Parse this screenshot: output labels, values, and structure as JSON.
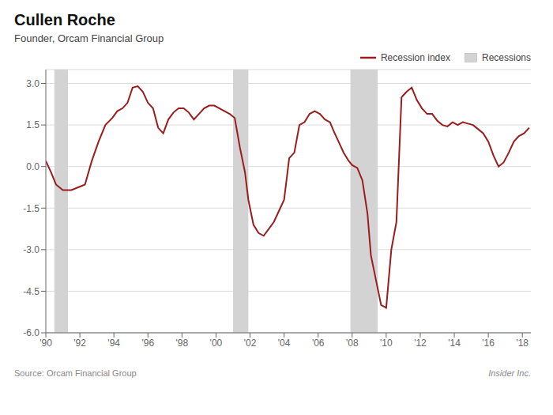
{
  "chart_data": {
    "type": "line",
    "title": "Cullen Roche",
    "subtitle": "Founder, Orcam Financial Group",
    "annotations": [
      "Source: Orcam Financial Group",
      "Insider Inc."
    ],
    "legend": "upper right",
    "grid": "y",
    "xlim": [
      1990.0,
      2018.5
    ],
    "xticks": [
      {
        "value": 1990,
        "label": "'90"
      },
      {
        "value": 1992,
        "label": "'92"
      },
      {
        "value": 1994,
        "label": "'94"
      },
      {
        "value": 1996,
        "label": "'96"
      },
      {
        "value": 1998,
        "label": "'98"
      },
      {
        "value": 2000,
        "label": "'00"
      },
      {
        "value": 2002,
        "label": "'02"
      },
      {
        "value": 2004,
        "label": "'04"
      },
      {
        "value": 2006,
        "label": "'06"
      },
      {
        "value": 2008,
        "label": "'08"
      },
      {
        "value": 2010,
        "label": "'10"
      },
      {
        "value": 2012,
        "label": "'12"
      },
      {
        "value": 2014,
        "label": "'14"
      },
      {
        "value": 2016,
        "label": "'16"
      },
      {
        "value": 2018,
        "label": "'18"
      }
    ],
    "ylim": [
      -6.0,
      3.5
    ],
    "yticks": [
      {
        "value": -6.0,
        "label": "-6.0"
      },
      -4.5,
      {
        "value": -3.0,
        "label": "-3.0"
      },
      -1.5,
      {
        "value": 0.0,
        "label": "0.0"
      },
      1.5,
      {
        "value": 3.0,
        "label": "3.0"
      }
    ],
    "recession_bands": {
      "name": "Recessions",
      "color": "#d3d3d3",
      "ranges": [
        [
          1990.5,
          1991.3
        ],
        [
          2001.0,
          2001.9
        ],
        [
          2007.9,
          2009.5
        ]
      ]
    },
    "x": [
      1990.0,
      1990.3,
      1990.6,
      1991.0,
      1991.5,
      1991.9,
      1992.3,
      1992.7,
      1993.1,
      1993.5,
      1993.9,
      1994.2,
      1994.5,
      1994.8,
      1995.1,
      1995.4,
      1995.7,
      1996.0,
      1996.3,
      1996.6,
      1996.9,
      1997.2,
      1997.5,
      1997.8,
      1998.1,
      1998.4,
      1998.7,
      1999.0,
      1999.3,
      1999.6,
      1999.9,
      2000.2,
      2000.5,
      2000.8,
      2001.1,
      2001.4,
      2001.7,
      2001.9,
      2002.2,
      2002.5,
      2002.8,
      2003.1,
      2003.4,
      2003.7,
      2004.0,
      2004.3,
      2004.6,
      2004.9,
      2005.2,
      2005.5,
      2005.8,
      2006.1,
      2006.4,
      2006.7,
      2006.9,
      2007.2,
      2007.5,
      2007.8,
      2008.0,
      2008.3,
      2008.6,
      2008.9,
      2009.1,
      2009.4,
      2009.7,
      2010.0,
      2010.3,
      2010.6,
      2010.9,
      2011.2,
      2011.5,
      2011.8,
      2012.1,
      2012.4,
      2012.7,
      2013.0,
      2013.3,
      2013.6,
      2013.9,
      2014.2,
      2014.5,
      2014.8,
      2015.1,
      2015.4,
      2015.7,
      2016.0,
      2016.3,
      2016.6,
      2016.9,
      2017.2,
      2017.5,
      2017.8,
      2018.1,
      2018.4
    ],
    "series": [
      {
        "name": "Recession index",
        "color": "#9b1c1c",
        "values": [
          0.2,
          -0.2,
          -0.65,
          -0.85,
          -0.85,
          -0.75,
          -0.65,
          0.2,
          0.9,
          1.5,
          1.75,
          2.0,
          2.1,
          2.3,
          2.85,
          2.9,
          2.7,
          2.3,
          2.1,
          1.4,
          1.2,
          1.7,
          1.95,
          2.1,
          2.1,
          1.95,
          1.7,
          1.9,
          2.1,
          2.2,
          2.2,
          2.1,
          2.0,
          1.9,
          1.75,
          0.7,
          -0.2,
          -1.2,
          -2.1,
          -2.4,
          -2.5,
          -2.25,
          -2.0,
          -1.6,
          -1.2,
          0.3,
          0.5,
          1.5,
          1.6,
          1.9,
          2.0,
          1.9,
          1.7,
          1.6,
          1.3,
          0.9,
          0.5,
          0.2,
          0.05,
          -0.05,
          -0.5,
          -1.7,
          -3.2,
          -4.1,
          -5.0,
          -5.1,
          -3.0,
          -2.0,
          2.5,
          2.7,
          2.85,
          2.4,
          2.1,
          1.9,
          1.9,
          1.65,
          1.5,
          1.45,
          1.6,
          1.5,
          1.6,
          1.55,
          1.5,
          1.35,
          1.2,
          0.9,
          0.4,
          0.0,
          0.15,
          0.5,
          0.9,
          1.1,
          1.2,
          1.4
        ]
      }
    ]
  }
}
